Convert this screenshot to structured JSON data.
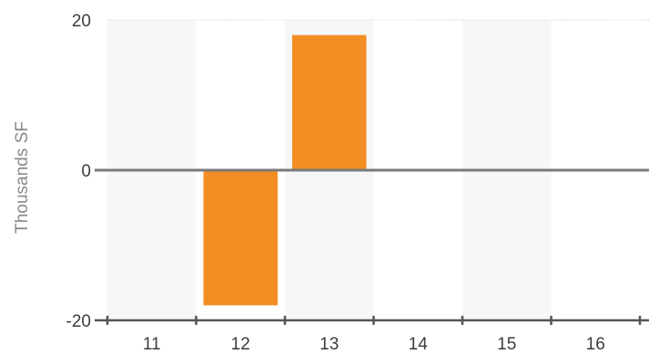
{
  "chart_data": {
    "type": "bar",
    "ylabel": "Thousands SF",
    "categories": [
      "11",
      "12",
      "13",
      "14",
      "15",
      "16"
    ],
    "values": [
      0,
      -18,
      18,
      0,
      0,
      0
    ],
    "ylim": [
      -20,
      20
    ],
    "yticks": [
      {
        "value": 20,
        "label": "20"
      },
      {
        "value": 0,
        "label": "0"
      },
      {
        "value": -20,
        "label": "-20"
      }
    ],
    "grid": true,
    "alternating_bands": true,
    "colors": {
      "bar": "#f28e24",
      "band": "#f7f7f7",
      "zero_line": "#7a7a7a",
      "axis": "#555555",
      "grid": "#c8c8c8"
    }
  }
}
